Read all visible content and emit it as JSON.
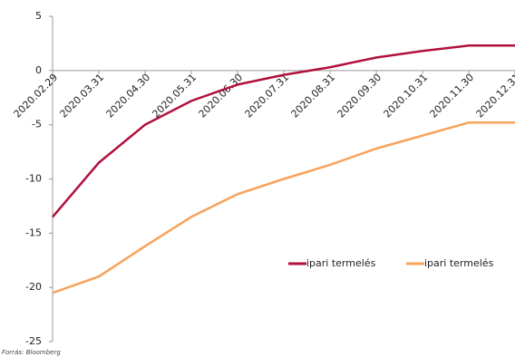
{
  "chart_data": {
    "type": "line",
    "categories": [
      "2020.02.29",
      "2020.03.31",
      "2020.04.30",
      "2020.05.31",
      "2020.06.30",
      "2020.07.31",
      "2020.08.31",
      "2020.09.30",
      "2020.10.31",
      "2020.11.30",
      "2020.12.31"
    ],
    "series": [
      {
        "name": "ipari termelés",
        "color": "#b0103c",
        "values": [
          -13.5,
          -8.5,
          -5,
          -2.8,
          -1.3,
          -0.4,
          0.3,
          1.2,
          1.8,
          2.3,
          2.3
        ]
      },
      {
        "name": "ipari termelés",
        "color": "#f7a35c",
        "values": [
          -20.5,
          -19,
          -16.2,
          -13.5,
          -11.4,
          -10,
          -8.7,
          -7.2,
          -6,
          -4.8,
          -4.8
        ]
      }
    ],
    "ylim": [
      -25,
      5
    ],
    "yticks": [
      -25,
      -20,
      -15,
      -10,
      -5,
      0,
      5
    ],
    "grid": false,
    "legend": "bottom-right",
    "source": "Forrás: Bloomberg"
  }
}
